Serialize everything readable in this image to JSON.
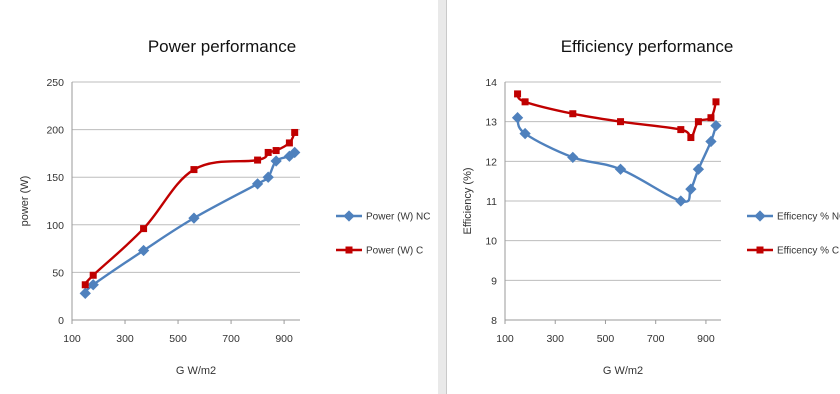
{
  "chart_data": [
    {
      "type": "line",
      "title": "Power performance",
      "xlabel": "G W/m2",
      "ylabel": "power (W)",
      "xticks": [
        "100",
        "300",
        "500",
        "700",
        "900"
      ],
      "yticks": [
        "0",
        "50",
        "100",
        "150",
        "200",
        "250"
      ],
      "xlim": [
        100,
        960
      ],
      "ylim": [
        0,
        250
      ],
      "grid": "horizontal",
      "legend": "right",
      "series": [
        {
          "name": "Power (W) NC",
          "color": "#4f81bd",
          "points": [
            [
              150,
              28
            ],
            [
              180,
              37
            ],
            [
              370,
              73
            ],
            [
              560,
              107
            ],
            [
              800,
              143
            ],
            [
              840,
              150
            ],
            [
              870,
              167
            ],
            [
              920,
              172
            ],
            [
              940,
              176
            ]
          ]
        },
        {
          "name": "Power (W) C",
          "color": "#c00000",
          "points": [
            [
              150,
              37
            ],
            [
              180,
              47
            ],
            [
              370,
              96
            ],
            [
              560,
              158
            ],
            [
              800,
              168
            ],
            [
              840,
              176
            ],
            [
              870,
              178
            ],
            [
              920,
              186
            ],
            [
              940,
              197
            ]
          ]
        }
      ]
    },
    {
      "type": "line",
      "title": "Efficiency performance",
      "xlabel": "G W/m2",
      "ylabel": "Efficiency (%)",
      "xticks": [
        "100",
        "300",
        "500",
        "700",
        "900"
      ],
      "yticks": [
        "8",
        "9",
        "10",
        "11",
        "12",
        "13",
        "14"
      ],
      "xlim": [
        100,
        960
      ],
      "ylim": [
        8,
        14
      ],
      "grid": "horizontal",
      "legend": "right",
      "series": [
        {
          "name": "Efficency % NC",
          "color": "#4f81bd",
          "points": [
            [
              150,
              13.1
            ],
            [
              180,
              12.7
            ],
            [
              370,
              12.1
            ],
            [
              560,
              11.8
            ],
            [
              800,
              11.0
            ],
            [
              840,
              11.3
            ],
            [
              870,
              11.8
            ],
            [
              920,
              12.5
            ],
            [
              940,
              12.9
            ]
          ]
        },
        {
          "name": "Efficency % C",
          "color": "#c00000",
          "points": [
            [
              150,
              13.7
            ],
            [
              180,
              13.5
            ],
            [
              370,
              13.2
            ],
            [
              560,
              13.0
            ],
            [
              800,
              12.8
            ],
            [
              840,
              12.6
            ],
            [
              870,
              13.0
            ],
            [
              920,
              13.1
            ],
            [
              940,
              13.5
            ]
          ]
        }
      ]
    }
  ]
}
